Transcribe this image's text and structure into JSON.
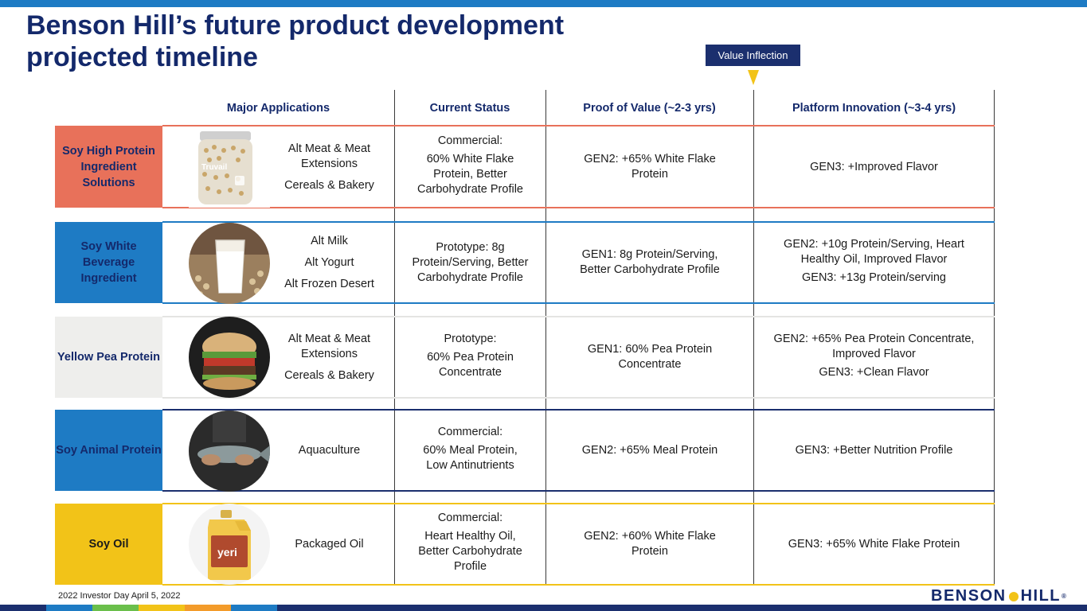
{
  "title": "Benson Hill’s future product development projected timeline",
  "value_inflection": "Value Inflection",
  "headers": {
    "applications": "Major Applications",
    "status": "Current Status",
    "proof": "Proof of Value (~2-3 yrs)",
    "platform": "Platform Innovation (~3-4 yrs)"
  },
  "rows": [
    {
      "label": "Soy High Protein Ingredient Solutions",
      "image": "truvail-jar",
      "label_color": "#e8715a",
      "applications": [
        "Alt Meat & Meat Extensions",
        "Cereals & Bakery"
      ],
      "status": [
        "Commercial:",
        "60% White Flake Protein, Better Carbohydrate Profile"
      ],
      "proof": [
        "GEN2: +65% White Flake Protein"
      ],
      "platform": [
        "GEN3: +Improved Flavor"
      ]
    },
    {
      "label": "Soy White Beverage Ingredient",
      "image": "milk-glass",
      "label_color": "#1e7bc4",
      "applications": [
        "Alt Milk",
        "Alt Yogurt",
        "Alt Frozen Desert"
      ],
      "status": [
        "Prototype: 8g Protein/Serving, Better Carbohydrate Profile"
      ],
      "proof": [
        "GEN1: 8g Protein/Serving, Better Carbohydrate Profile"
      ],
      "platform": [
        "GEN2: +10g Protein/Serving, Heart Healthy Oil, Improved Flavor",
        "GEN3: +13g Protein/serving"
      ]
    },
    {
      "label": "Yellow Pea Protein",
      "image": "burger",
      "label_color": "#eeeeec",
      "applications": [
        "Alt Meat & Meat Extensions",
        "Cereals & Bakery"
      ],
      "status": [
        "Prototype:",
        "60% Pea Protein Concentrate"
      ],
      "proof": [
        "GEN1: 60% Pea Protein Concentrate"
      ],
      "platform": [
        "GEN2: +65% Pea Protein Concentrate, Improved Flavor",
        "GEN3: +Clean Flavor"
      ]
    },
    {
      "label": "Soy Animal Protein",
      "image": "fish-in-hands",
      "label_color": "#1e7bc4",
      "applications": [
        "Aquaculture"
      ],
      "status": [
        "Commercial:",
        "60% Meal Protein, Low Antinutrients"
      ],
      "proof": [
        "GEN2: +65% Meal Protein"
      ],
      "platform": [
        "GEN3: +Better Nutrition Profile"
      ]
    },
    {
      "label": "Soy Oil",
      "image": "yeri-oil-jug",
      "label_color": "#f2c318",
      "applications": [
        "Packaged Oil"
      ],
      "status": [
        "Commercial:",
        "Heart Healthy Oil, Better Carbohydrate Profile"
      ],
      "proof": [
        "GEN2: +60% White Flake Protein"
      ],
      "platform": [
        "GEN3: +65% White Flake Protein"
      ]
    }
  ],
  "images_text": {
    "jar_brand": "Truvail",
    "jug_brand": "yeri"
  },
  "footer": "2022 Investor Day April 5, 2022",
  "logo": {
    "left": "BENSON",
    "right": "HILL",
    "mark": "®"
  },
  "colors": {
    "navy": "#14296b",
    "blue": "#1e7bc4",
    "coral": "#e8715a",
    "yellow": "#f2c318",
    "grey": "#eeeeec"
  },
  "bottom_bar_colors": [
    "#1b2f6e",
    "#1e7bc4",
    "#6abf4b",
    "#f2c318",
    "#f39b2a",
    "#1e7bc4",
    "#1b2f6e"
  ]
}
